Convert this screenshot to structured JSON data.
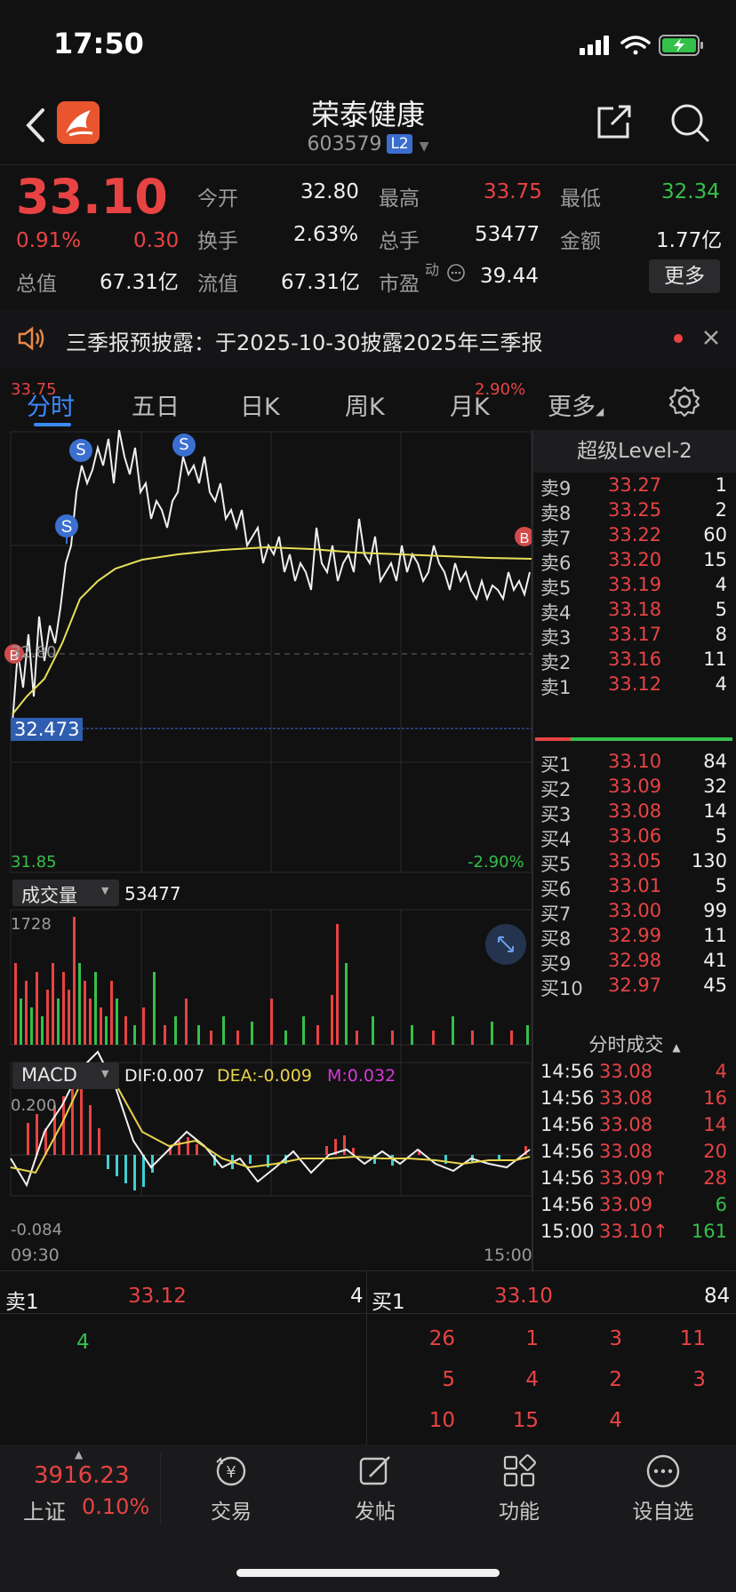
{
  "status_bar": {
    "time": "17:50"
  },
  "header": {
    "title": "荣泰健康",
    "code": "603579",
    "badge": "L2"
  },
  "quote": {
    "price": "33.10",
    "change_pct": "0.91%",
    "change": "0.30",
    "open_label": "今开",
    "open": "32.80",
    "high_label": "最高",
    "high": "33.75",
    "low_label": "最低",
    "low": "32.34",
    "turnover_label": "换手",
    "turnover": "2.63%",
    "volume_label": "总手",
    "volume": "53477",
    "amount_label": "金额",
    "amount": "1.77亿",
    "mcap_label": "总值",
    "mcap": "67.31亿",
    "float_label": "流值",
    "float": "67.31亿",
    "pe_label": "市盈",
    "pe_sup": "动",
    "pe": "39.44",
    "more_label": "更多"
  },
  "notice": {
    "text": "三季报预披露：于2025-10-30披露2025年三季报"
  },
  "tabs": [
    "分时",
    "五日",
    "日K",
    "周K",
    "月K",
    "更多"
  ],
  "chart": {
    "price_high": "33.75",
    "price_low": "31.85",
    "pct_high": "2.90%",
    "pct_low": "-2.90%",
    "prev_close": "32.80",
    "marker_price": "32.473",
    "volume_label": "成交量",
    "volume_value": "53477",
    "volume_max": "1728",
    "macd_label": "MACD",
    "dif": "DIF:0.007",
    "dea": "DEA:-0.009",
    "m": "M:0.032",
    "macd_top": "0.200",
    "macd_bottom": "-0.084",
    "time_start": "09:30",
    "time_end": "15:00",
    "signal_sell": "S",
    "signal_buy": "B"
  },
  "order_book": {
    "title": "超级Level-2",
    "asks": [
      {
        "label": "卖9",
        "price": "33.27",
        "vol": "1"
      },
      {
        "label": "卖8",
        "price": "33.25",
        "vol": "2"
      },
      {
        "label": "卖7",
        "price": "33.22",
        "vol": "60"
      },
      {
        "label": "卖6",
        "price": "33.20",
        "vol": "15"
      },
      {
        "label": "卖5",
        "price": "33.19",
        "vol": "4"
      },
      {
        "label": "卖4",
        "price": "33.18",
        "vol": "5"
      },
      {
        "label": "卖3",
        "price": "33.17",
        "vol": "8"
      },
      {
        "label": "卖2",
        "price": "33.16",
        "vol": "11"
      },
      {
        "label": "卖1",
        "price": "33.12",
        "vol": "4"
      }
    ],
    "bids": [
      {
        "label": "买1",
        "price": "33.10",
        "vol": "84"
      },
      {
        "label": "买2",
        "price": "33.09",
        "vol": "32"
      },
      {
        "label": "买3",
        "price": "33.08",
        "vol": "14"
      },
      {
        "label": "买4",
        "price": "33.06",
        "vol": "5"
      },
      {
        "label": "买5",
        "price": "33.05",
        "vol": "130"
      },
      {
        "label": "买6",
        "price": "33.01",
        "vol": "5"
      },
      {
        "label": "买7",
        "price": "33.00",
        "vol": "99"
      },
      {
        "label": "买8",
        "price": "32.99",
        "vol": "11"
      },
      {
        "label": "买9",
        "price": "32.98",
        "vol": "41"
      },
      {
        "label": "买10",
        "price": "32.97",
        "vol": "45"
      }
    ]
  },
  "time_trades": {
    "title": "分时成交",
    "rows": [
      {
        "time": "14:56",
        "price": "33.08",
        "vol": "4",
        "vol_color": "red"
      },
      {
        "time": "14:56",
        "price": "33.08",
        "vol": "16",
        "vol_color": "red"
      },
      {
        "time": "14:56",
        "price": "33.08",
        "vol": "14",
        "vol_color": "red"
      },
      {
        "time": "14:56",
        "price": "33.08",
        "vol": "20",
        "vol_color": "red"
      },
      {
        "time": "14:56",
        "price": "33.09↑",
        "vol": "28",
        "vol_color": "red"
      },
      {
        "time": "14:56",
        "price": "33.09",
        "vol": "6",
        "vol_color": "green"
      },
      {
        "time": "15:00",
        "price": "33.10↑",
        "vol": "161",
        "vol_color": "green"
      }
    ]
  },
  "level1": {
    "ask_label": "卖1",
    "ask_price": "33.12",
    "ask_vol": "4",
    "bid_label": "买1",
    "bid_price": "33.10",
    "bid_vol": "84",
    "ask_queue": [
      "4"
    ],
    "bid_queue": [
      [
        "26",
        "1",
        "3",
        "11"
      ],
      [
        "5",
        "4",
        "2",
        "3"
      ],
      [
        "10",
        "15",
        "4",
        ""
      ]
    ]
  },
  "tab_bar": {
    "index_value": "3916.23",
    "index_name": "上证",
    "index_pct": "0.10%",
    "items": [
      "交易",
      "发帖",
      "功能",
      "设自选"
    ]
  },
  "colors": {
    "up": "#e84343",
    "down": "#35c04a",
    "accent": "#3b8bff",
    "avg_line": "#e8e05a",
    "dea": "#e8d44a",
    "m": "#d63ad6"
  }
}
